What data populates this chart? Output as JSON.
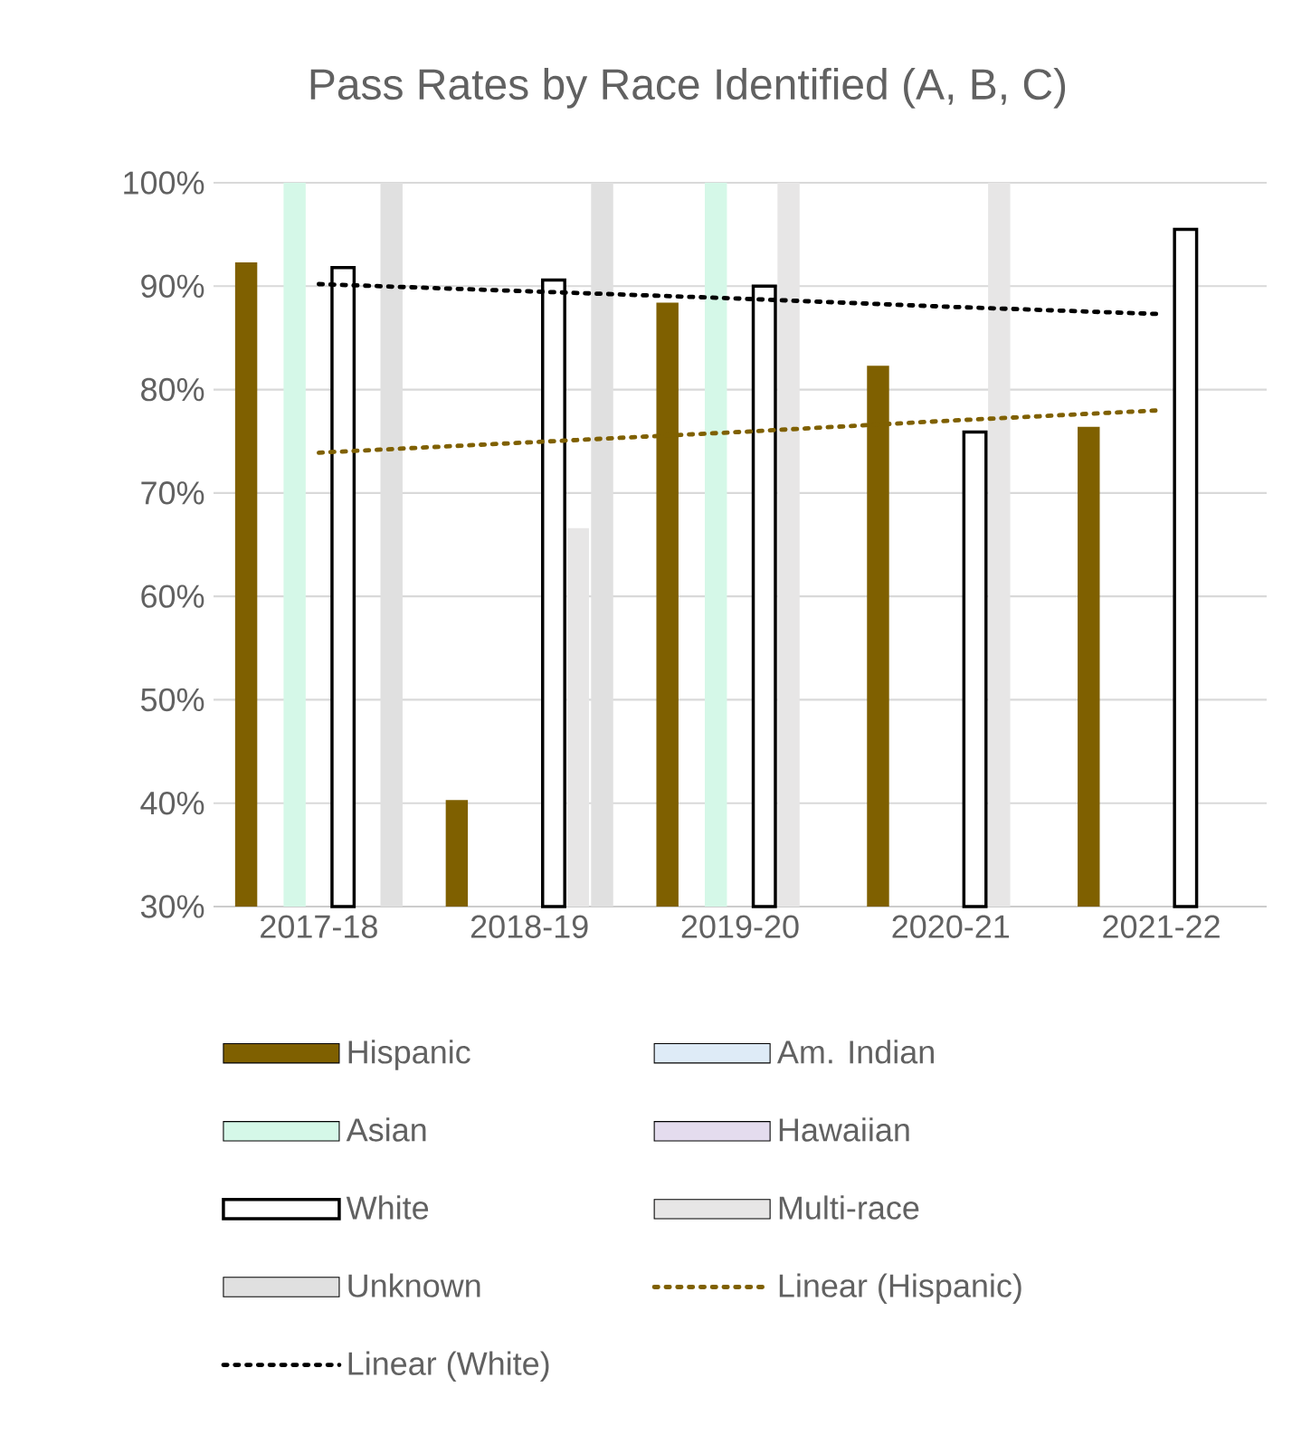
{
  "chart_data": {
    "type": "bar",
    "title": "Pass Rates by Race Identified (A, B, C)",
    "categories": [
      "2017-18",
      "2018-19",
      "2019-20",
      "2020-21",
      "2021-22"
    ],
    "series": [
      {
        "name": "Hispanic",
        "color": "#7f6000",
        "values": [
          92.3,
          40.3,
          88.4,
          82.3,
          76.4
        ]
      },
      {
        "name": "Am. Indian",
        "color": "#deebf7",
        "values": [
          null,
          null,
          null,
          null,
          null
        ]
      },
      {
        "name": "Asian",
        "color": "#d5f8e8",
        "values": [
          100,
          null,
          100,
          null,
          null
        ]
      },
      {
        "name": "Hawaiian",
        "color": "#e4dcee",
        "values": [
          null,
          null,
          null,
          null,
          null
        ]
      },
      {
        "name": "White",
        "color": "#ffffff",
        "values": [
          91.8,
          90.6,
          90.0,
          75.9,
          95.5
        ]
      },
      {
        "name": "Multi-race",
        "color": "#e7e6e6",
        "values": [
          null,
          66.6,
          100,
          100,
          null
        ]
      },
      {
        "name": "Unknown",
        "color": "#e0e0e0",
        "values": [
          100,
          100,
          null,
          null,
          null
        ]
      },
      {
        "name": "Linear (Hispanic)",
        "type": "line",
        "color": "#7f6000",
        "line_style": "dotted",
        "marker": "none",
        "values": [
          73.9,
          74.9,
          75.9,
          77.0,
          78.0
        ]
      },
      {
        "name": "Linear (White)",
        "type": "line",
        "color": "#000000",
        "line_style": "dotted",
        "marker": "none",
        "values": [
          90.2,
          89.5,
          88.8,
          88.0,
          87.3
        ]
      }
    ],
    "ylim": [
      30,
      100
    ],
    "yticks": [
      {
        "value": 30,
        "label": "30%"
      },
      {
        "value": 40,
        "label": "40%"
      },
      {
        "value": 50,
        "label": "50%"
      },
      {
        "value": 60,
        "label": "60%"
      },
      {
        "value": 70,
        "label": "70%"
      },
      {
        "value": 80,
        "label": "80%"
      },
      {
        "value": 90,
        "label": "90%"
      },
      {
        "value": 100,
        "label": "100%"
      }
    ],
    "grid": "y",
    "legend": "bottom"
  }
}
